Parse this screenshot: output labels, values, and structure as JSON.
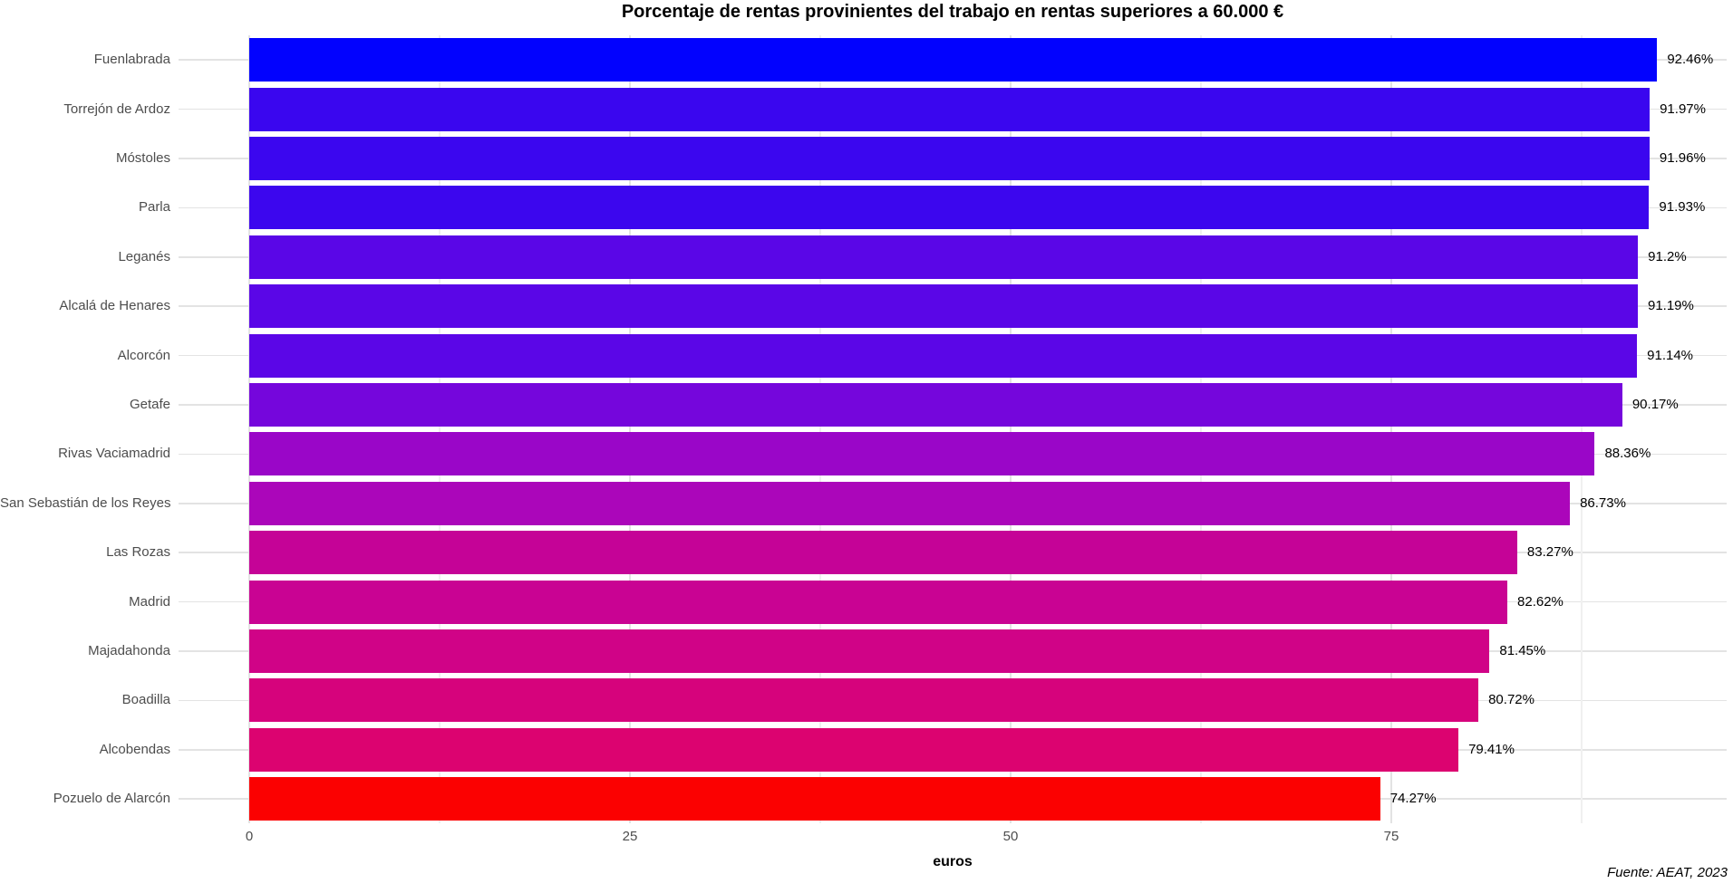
{
  "title": "Porcentaje de rentas provinientes del trabajo en rentas superiores a 60.000 €",
  "x_axis_label": "euros",
  "caption": "Fuente: AEAT, 2023",
  "chart_data": {
    "type": "bar",
    "orientation": "horizontal",
    "title": "Porcentaje de rentas provinientes del trabajo en rentas superiores a 60.000 €",
    "xlabel": "euros",
    "ylabel": "",
    "xlim": [
      0,
      97
    ],
    "x_major_ticks": [
      0,
      25,
      50,
      75
    ],
    "x_minor_ticks": [
      12.5,
      37.5,
      62.5,
      87.5
    ],
    "x_tick_labels": [
      "0",
      "25",
      "50",
      "75"
    ],
    "grid": true,
    "legend": "none",
    "background": "#ffffff",
    "categories": [
      "Fuenlabrada",
      "Torrejón de Ardoz",
      "Móstoles",
      "Parla",
      "Leganés",
      "Alcalá de Henares",
      "Alcorcón",
      "Getafe",
      "Rivas Vaciamadrid",
      "San Sebastián de los Reyes",
      "Las Rozas",
      "Madrid",
      "Majadahonda",
      "Boadilla",
      "Alcobendas",
      "Pozuelo de Alarcón"
    ],
    "values": [
      92.46,
      91.97,
      91.96,
      91.93,
      91.2,
      91.19,
      91.14,
      90.17,
      88.36,
      86.73,
      83.27,
      82.62,
      81.45,
      80.72,
      79.41,
      74.27
    ],
    "value_labels": [
      "92.46%",
      "91.97%",
      "91.96%",
      "91.93%",
      "91.2%",
      "91.19%",
      "91.14%",
      "90.17%",
      "88.36%",
      "86.73%",
      "83.27%",
      "82.62%",
      "81.45%",
      "80.72%",
      "79.41%",
      "74.27%"
    ],
    "bar_colors": [
      "#0202fe",
      "#3a06ef",
      "#3b06ef",
      "#3c06ee",
      "#5a06e7",
      "#5a06e7",
      "#5b06e7",
      "#7506dc",
      "#9a06c8",
      "#ab06ba",
      "#c50397",
      "#c90393",
      "#d00387",
      "#d6037c",
      "#dc0370",
      "#fb0101"
    ],
    "source": "Fuente: AEAT, 2023"
  },
  "colors": {
    "axis_text": "#4d4d4d",
    "value_text": "#000000",
    "grid_major": "#e3e3e3",
    "grid_minor": "#f0f0f0",
    "background": "#ffffff"
  }
}
